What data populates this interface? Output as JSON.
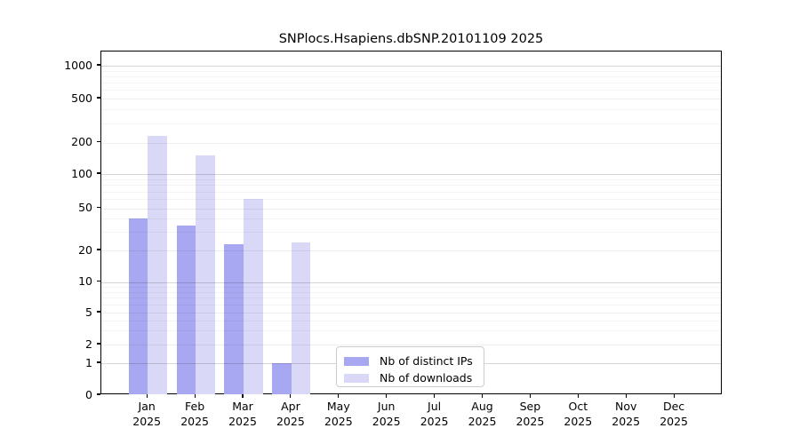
{
  "title": "SNPlocs.Hsapiens.dbSNP.20101109 2025",
  "year_label": "2025",
  "colors": {
    "distinct_ips_bar": "#a8a8f2",
    "downloads_bar": "#d9d9f7",
    "grid_major": "#c6c6c6",
    "grid_minor": "#ebebeb",
    "axis": "#000000",
    "legend_border": "#cccccc"
  },
  "legend": {
    "items": [
      {
        "key": "ips",
        "label": "Nb of distinct IPs"
      },
      {
        "key": "downloads",
        "label": "Nb of downloads"
      }
    ]
  },
  "chart_data": {
    "type": "bar",
    "title": "SNPlocs.Hsapiens.dbSNP.20101109 2025",
    "categories": [
      "Jan",
      "Feb",
      "Mar",
      "Apr",
      "May",
      "Jun",
      "Jul",
      "Aug",
      "Sep",
      "Oct",
      "Nov",
      "Dec"
    ],
    "category_year": "2025",
    "series": [
      {
        "name": "Nb of distinct IPs",
        "color": "#a8a8f2",
        "values": [
          40,
          34,
          23,
          1,
          0,
          0,
          0,
          0,
          0,
          0,
          0,
          0
        ]
      },
      {
        "name": "Nb of downloads",
        "color": "#d9d9f7",
        "values": [
          230,
          150,
          60,
          24,
          0,
          0,
          0,
          0,
          0,
          0,
          0,
          0
        ]
      }
    ],
    "xlabel": "",
    "ylabel": "",
    "yscale": "symlog",
    "yticks": [
      0,
      1,
      2,
      5,
      10,
      20,
      50,
      100,
      200,
      500,
      1000
    ],
    "minor_grid_values": [
      3,
      4,
      6,
      7,
      8,
      9,
      30,
      40,
      60,
      70,
      80,
      90,
      300,
      400,
      600,
      700,
      800,
      900
    ],
    "ylim": [
      0,
      1500
    ],
    "grid": "horizontal",
    "legend_position": "lower center"
  }
}
